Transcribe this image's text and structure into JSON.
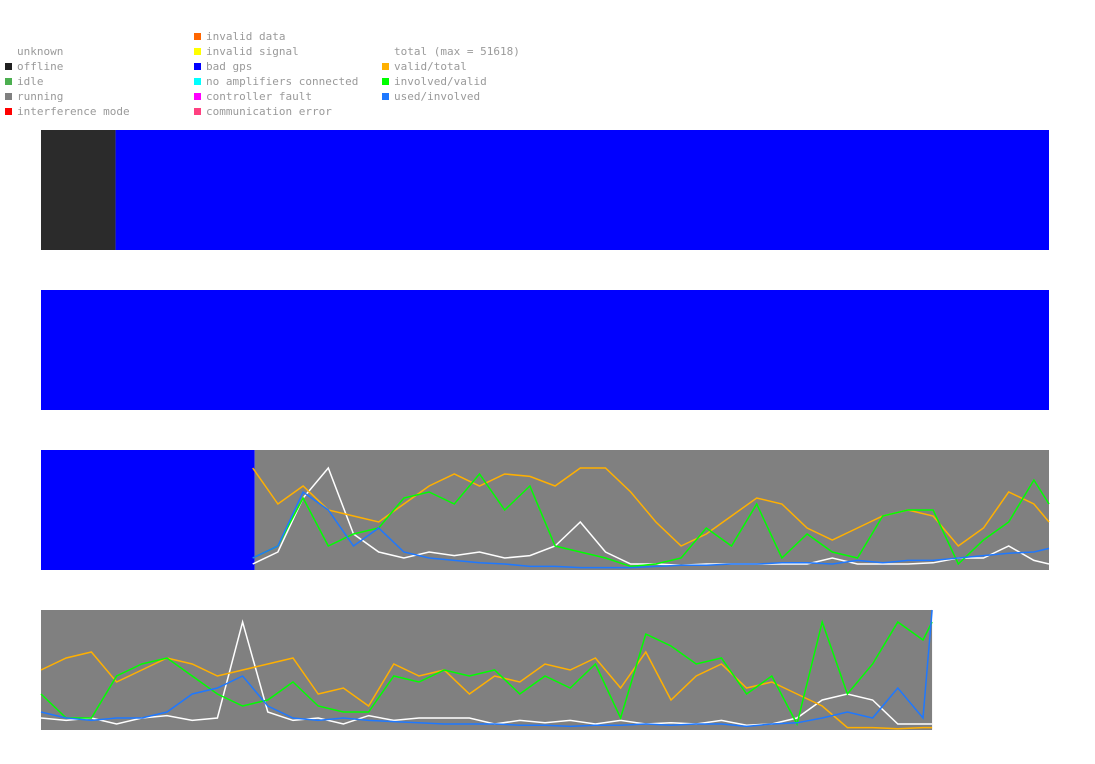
{
  "legend": {
    "columns": [
      [
        {
          "label": "unknown",
          "color": "#ffffff"
        },
        {
          "label": "offline",
          "color": "#202020"
        },
        {
          "label": "idle",
          "color": "#4caf50"
        },
        {
          "label": "running",
          "color": "#808080"
        },
        {
          "label": "interference mode",
          "color": "#ff0000"
        }
      ],
      [
        {
          "label": "invalid data",
          "color": "#ff6600"
        },
        {
          "label": "invalid signal",
          "color": "#ffff00"
        },
        {
          "label": "bad gps",
          "color": "#0000ff"
        },
        {
          "label": "no amplifiers connected",
          "color": "#00ffff"
        },
        {
          "label": "controller fault",
          "color": "#ff00ff"
        },
        {
          "label": "communication error",
          "color": "#ff4080"
        }
      ],
      [
        {
          "label": "total (max = 51618)",
          "color": "#ffffff"
        },
        {
          "label": "valid/total",
          "color": "#ffb000"
        },
        {
          "label": "involved/valid",
          "color": "#00ff00"
        },
        {
          "label": "used/involved",
          "color": "#1e78ff"
        }
      ]
    ]
  },
  "chart_data": [
    {
      "type": "timeline",
      "xlim": [
        0,
        100
      ],
      "ylim": [
        0,
        1
      ],
      "segments": [
        {
          "color": "#2b2b2b",
          "start": 0,
          "end": 7.4
        },
        {
          "color": "#0000ff",
          "start": 7.4,
          "end": 100
        }
      ]
    },
    {
      "type": "timeline",
      "xlim": [
        0,
        100
      ],
      "ylim": [
        0,
        1
      ],
      "segments": [
        {
          "color": "#0000ff",
          "start": 0,
          "end": 100
        }
      ]
    },
    {
      "type": "timeline",
      "xlim": [
        0,
        100
      ],
      "ylim": [
        0,
        1
      ],
      "segments": [
        {
          "color": "#0000ff",
          "start": 0,
          "end": 21.2
        },
        {
          "color": "#808080",
          "start": 21.2,
          "end": 100
        }
      ],
      "x": [
        21,
        23.5,
        26,
        28.5,
        31,
        33.5,
        36,
        38.5,
        41,
        43.5,
        46,
        48.5,
        51,
        53.5,
        56,
        58.5,
        61,
        63.5,
        66,
        68.5,
        71,
        73.5,
        76,
        78.5,
        81,
        83.5,
        86,
        88.5,
        91,
        93.5,
        96,
        98.5,
        100
      ],
      "series": [
        {
          "color": "#ffffff",
          "values": [
            0.05,
            0.15,
            0.6,
            0.85,
            0.3,
            0.15,
            0.1,
            0.15,
            0.12,
            0.15,
            0.1,
            0.12,
            0.2,
            0.4,
            0.15,
            0.05,
            0.05,
            0.04,
            0.05,
            0.05,
            0.05,
            0.05,
            0.05,
            0.1,
            0.05,
            0.05,
            0.05,
            0.06,
            0.1,
            0.1,
            0.2,
            0.08,
            0.05
          ]
        },
        {
          "color": "#ffb000",
          "values": [
            0.85,
            0.55,
            0.7,
            0.5,
            0.45,
            0.4,
            0.55,
            0.7,
            0.8,
            0.7,
            0.8,
            0.78,
            0.7,
            0.85,
            0.85,
            0.65,
            0.4,
            0.2,
            0.3,
            0.45,
            0.6,
            0.55,
            0.35,
            0.25,
            0.35,
            0.45,
            0.5,
            0.45,
            0.2,
            0.35,
            0.65,
            0.55,
            0.4
          ]
        },
        {
          "color": "#00ff00",
          "values": [
            0.1,
            0.2,
            0.6,
            0.2,
            0.3,
            0.35,
            0.6,
            0.65,
            0.55,
            0.8,
            0.5,
            0.7,
            0.2,
            0.15,
            0.1,
            0.03,
            0.05,
            0.1,
            0.35,
            0.2,
            0.55,
            0.1,
            0.3,
            0.15,
            0.1,
            0.45,
            0.5,
            0.5,
            0.05,
            0.25,
            0.4,
            0.75,
            0.55
          ]
        },
        {
          "color": "#1e78ff",
          "values": [
            0.1,
            0.2,
            0.65,
            0.5,
            0.2,
            0.35,
            0.15,
            0.1,
            0.08,
            0.06,
            0.05,
            0.03,
            0.03,
            0.02,
            0.02,
            0.02,
            0.03,
            0.04,
            0.04,
            0.05,
            0.05,
            0.06,
            0.06,
            0.05,
            0.08,
            0.06,
            0.08,
            0.08,
            0.1,
            0.12,
            0.14,
            0.15,
            0.18
          ]
        }
      ]
    },
    {
      "type": "timeline",
      "xlim": [
        0,
        100
      ],
      "ylim": [
        0,
        1
      ],
      "segments": [
        {
          "color": "#808080",
          "start": 0,
          "end": 88.4
        }
      ],
      "x": [
        0,
        2.5,
        5,
        7.5,
        10,
        12.5,
        15,
        17.5,
        20,
        22.5,
        25,
        27.5,
        30,
        32.5,
        35,
        37.5,
        40,
        42.5,
        45,
        47.5,
        50,
        52.5,
        55,
        57.5,
        60,
        62.5,
        65,
        67.5,
        70,
        72.5,
        75,
        77.5,
        80,
        82.5,
        85,
        87.5,
        88.4
      ],
      "series": [
        {
          "color": "#ffffff",
          "values": [
            0.1,
            0.08,
            0.1,
            0.05,
            0.1,
            0.12,
            0.08,
            0.1,
            0.9,
            0.15,
            0.08,
            0.1,
            0.05,
            0.12,
            0.08,
            0.1,
            0.1,
            0.1,
            0.05,
            0.08,
            0.06,
            0.08,
            0.05,
            0.08,
            0.05,
            0.06,
            0.05,
            0.08,
            0.04,
            0.05,
            0.1,
            0.25,
            0.3,
            0.25,
            0.05,
            0.05,
            0.05
          ]
        },
        {
          "color": "#ffb000",
          "values": [
            0.5,
            0.6,
            0.65,
            0.4,
            0.5,
            0.6,
            0.55,
            0.45,
            0.5,
            0.55,
            0.6,
            0.3,
            0.35,
            0.2,
            0.55,
            0.45,
            0.5,
            0.3,
            0.45,
            0.4,
            0.55,
            0.5,
            0.6,
            0.35,
            0.65,
            0.25,
            0.45,
            0.55,
            0.35,
            0.4,
            0.3,
            0.2,
            0.02,
            0.02,
            0.01,
            0.02,
            0.02
          ]
        },
        {
          "color": "#00ff00",
          "values": [
            0.3,
            0.1,
            0.1,
            0.45,
            0.55,
            0.6,
            0.45,
            0.3,
            0.2,
            0.25,
            0.4,
            0.2,
            0.15,
            0.15,
            0.45,
            0.4,
            0.5,
            0.45,
            0.5,
            0.3,
            0.45,
            0.35,
            0.55,
            0.1,
            0.8,
            0.7,
            0.55,
            0.6,
            0.3,
            0.45,
            0.05,
            0.9,
            0.3,
            0.55,
            0.9,
            0.75,
            0.9
          ]
        },
        {
          "color": "#1e78ff",
          "values": [
            0.15,
            0.1,
            0.08,
            0.1,
            0.1,
            0.15,
            0.3,
            0.35,
            0.45,
            0.2,
            0.1,
            0.08,
            0.1,
            0.08,
            0.07,
            0.06,
            0.05,
            0.05,
            0.05,
            0.04,
            0.04,
            0.03,
            0.04,
            0.04,
            0.05,
            0.04,
            0.05,
            0.05,
            0.03,
            0.05,
            0.06,
            0.1,
            0.15,
            0.1,
            0.35,
            0.1,
            1
          ]
        }
      ]
    }
  ]
}
